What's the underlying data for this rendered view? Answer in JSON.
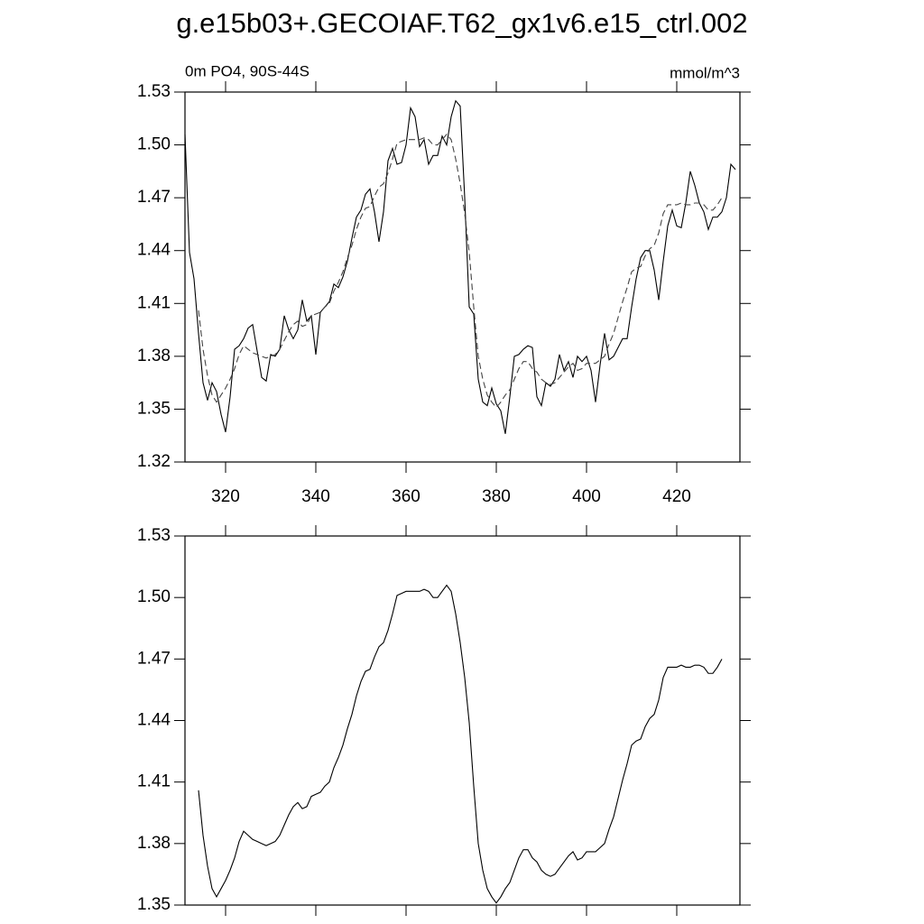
{
  "title": "g.e15b03+.GECOIAF.T62_gx1v6.e15_ctrl.002",
  "chart_data": [
    {
      "type": "line",
      "subtitle": "0m PO4, 90S-44S",
      "units": "mmol/m^3",
      "xlim": [
        311,
        434
      ],
      "xticks": [
        320,
        340,
        360,
        380,
        400,
        420
      ],
      "ylim": [
        1.32,
        1.53
      ],
      "yticks": [
        1.32,
        1.35,
        1.38,
        1.41,
        1.44,
        1.47,
        {
          "value": 1.5,
          "label": "1.50"
        },
        1.53
      ],
      "series": [
        {
          "color": "#000000",
          "dashed": false,
          "x": [
            311,
            312,
            313,
            314,
            315,
            316,
            317,
            318,
            319,
            320,
            321,
            322,
            323,
            324,
            325,
            326,
            327,
            328,
            329,
            330,
            331,
            332,
            333,
            334,
            335,
            336,
            337,
            338,
            339,
            340,
            341,
            342,
            343,
            344,
            345,
            346,
            347,
            348,
            349,
            350,
            351,
            352,
            353,
            354,
            355,
            356,
            357,
            358,
            359,
            360,
            361,
            362,
            363,
            364,
            365,
            366,
            367,
            368,
            369,
            370,
            371,
            372,
            373,
            374,
            375,
            376,
            377,
            378,
            379,
            380,
            381,
            382,
            383,
            384,
            385,
            386,
            387,
            388,
            389,
            390,
            391,
            392,
            393,
            394,
            395,
            396,
            397,
            398,
            399,
            400,
            401,
            402,
            403,
            404,
            405,
            406,
            407,
            408,
            409,
            410,
            411,
            412,
            413,
            414,
            415,
            416,
            417,
            418,
            419,
            420,
            421,
            422,
            423,
            424,
            425,
            426,
            427,
            428,
            429,
            430,
            431,
            432,
            433
          ],
          "values": [
            1.506,
            1.439,
            1.424,
            1.393,
            1.365,
            1.355,
            1.365,
            1.36,
            1.347,
            1.337,
            1.357,
            1.384,
            1.386,
            1.39,
            1.396,
            1.398,
            1.383,
            1.368,
            1.366,
            1.381,
            1.38,
            1.384,
            1.403,
            1.395,
            1.39,
            1.395,
            1.412,
            1.4,
            1.403,
            1.381,
            1.405,
            1.408,
            1.411,
            1.421,
            1.419,
            1.425,
            1.434,
            1.447,
            1.459,
            1.463,
            1.472,
            1.475,
            1.462,
            1.445,
            1.462,
            1.491,
            1.498,
            1.489,
            1.49,
            1.5,
            1.521,
            1.516,
            1.499,
            1.503,
            1.489,
            1.494,
            1.494,
            1.505,
            1.5,
            1.516,
            1.525,
            1.522,
            1.47,
            1.408,
            1.404,
            1.367,
            1.354,
            1.352,
            1.362,
            1.353,
            1.349,
            1.336,
            1.357,
            1.38,
            1.381,
            1.384,
            1.386,
            1.385,
            1.357,
            1.352,
            1.365,
            1.363,
            1.367,
            1.381,
            1.372,
            1.377,
            1.368,
            1.38,
            1.377,
            1.38,
            1.372,
            1.354,
            1.375,
            1.393,
            1.378,
            1.38,
            1.385,
            1.39,
            1.39,
            1.408,
            1.424,
            1.436,
            1.44,
            1.44,
            1.429,
            1.412,
            1.434,
            1.454,
            1.463,
            1.454,
            1.453,
            1.467,
            1.485,
            1.477,
            1.467,
            1.462,
            1.452,
            1.459,
            1.459,
            1.462,
            1.47,
            1.489,
            1.486
          ]
        },
        {
          "color": "#444444",
          "dashed": true,
          "x": [
            314,
            315,
            316,
            317,
            318,
            319,
            320,
            321,
            322,
            323,
            324,
            325,
            326,
            327,
            328,
            329,
            330,
            331,
            332,
            333,
            334,
            335,
            336,
            337,
            338,
            339,
            340,
            341,
            342,
            343,
            344,
            345,
            346,
            347,
            348,
            349,
            350,
            351,
            352,
            353,
            354,
            355,
            356,
            357,
            358,
            359,
            360,
            361,
            362,
            363,
            364,
            365,
            366,
            367,
            368,
            369,
            370,
            371,
            372,
            373,
            374,
            375,
            376,
            377,
            378,
            379,
            380,
            381,
            382,
            383,
            384,
            385,
            386,
            387,
            388,
            389,
            390,
            391,
            392,
            393,
            394,
            395,
            396,
            397,
            398,
            399,
            400,
            401,
            402,
            403,
            404,
            405,
            406,
            407,
            408,
            409,
            410,
            411,
            412,
            413,
            414,
            415,
            416,
            417,
            418,
            419,
            420,
            421,
            422,
            423,
            424,
            425,
            426,
            427,
            428,
            429,
            430
          ],
          "values": [
            1.406,
            1.384,
            1.369,
            1.358,
            1.354,
            1.358,
            1.362,
            1.367,
            1.373,
            1.381,
            1.386,
            1.384,
            1.382,
            1.381,
            1.38,
            1.379,
            1.38,
            1.381,
            1.384,
            1.389,
            1.394,
            1.398,
            1.4,
            1.397,
            1.398,
            1.403,
            1.404,
            1.405,
            1.408,
            1.41,
            1.417,
            1.422,
            1.428,
            1.436,
            1.443,
            1.452,
            1.459,
            1.464,
            1.465,
            1.471,
            1.476,
            1.478,
            1.484,
            1.492,
            1.501,
            1.502,
            1.503,
            1.503,
            1.503,
            1.503,
            1.504,
            1.503,
            1.5,
            1.5,
            1.503,
            1.506,
            1.503,
            1.492,
            1.478,
            1.461,
            1.439,
            1.408,
            1.38,
            1.367,
            1.358,
            1.354,
            1.351,
            1.354,
            1.358,
            1.361,
            1.367,
            1.373,
            1.377,
            1.377,
            1.373,
            1.371,
            1.367,
            1.365,
            1.364,
            1.365,
            1.368,
            1.371,
            1.374,
            1.376,
            1.372,
            1.373,
            1.376,
            1.376,
            1.376,
            1.378,
            1.38,
            1.387,
            1.393,
            1.402,
            1.411,
            1.419,
            1.428,
            1.43,
            1.431,
            1.437,
            1.441,
            1.443,
            1.45,
            1.461,
            1.466,
            1.466,
            1.466,
            1.467,
            1.466,
            1.466,
            1.467,
            1.467,
            1.466,
            1.463,
            1.463,
            1.466,
            1.47
          ]
        }
      ]
    },
    {
      "type": "line",
      "xlim": [
        311,
        434
      ],
      "xticks": [
        320,
        340,
        360,
        380,
        400,
        420
      ],
      "ylim": [
        1.35,
        1.53
      ],
      "yticks": [
        1.35,
        1.38,
        1.41,
        1.44,
        1.47,
        {
          "value": 1.5,
          "label": "1.50"
        },
        1.53
      ],
      "series": [
        {
          "color": "#000000",
          "dashed": false,
          "x": [
            314,
            315,
            316,
            317,
            318,
            319,
            320,
            321,
            322,
            323,
            324,
            325,
            326,
            327,
            328,
            329,
            330,
            331,
            332,
            333,
            334,
            335,
            336,
            337,
            338,
            339,
            340,
            341,
            342,
            343,
            344,
            345,
            346,
            347,
            348,
            349,
            350,
            351,
            352,
            353,
            354,
            355,
            356,
            357,
            358,
            359,
            360,
            361,
            362,
            363,
            364,
            365,
            366,
            367,
            368,
            369,
            370,
            371,
            372,
            373,
            374,
            375,
            376,
            377,
            378,
            379,
            380,
            381,
            382,
            383,
            384,
            385,
            386,
            387,
            388,
            389,
            390,
            391,
            392,
            393,
            394,
            395,
            396,
            397,
            398,
            399,
            400,
            401,
            402,
            403,
            404,
            405,
            406,
            407,
            408,
            409,
            410,
            411,
            412,
            413,
            414,
            415,
            416,
            417,
            418,
            419,
            420,
            421,
            422,
            423,
            424,
            425,
            426,
            427,
            428,
            429,
            430
          ],
          "values": [
            1.406,
            1.384,
            1.369,
            1.358,
            1.354,
            1.358,
            1.362,
            1.367,
            1.373,
            1.381,
            1.386,
            1.384,
            1.382,
            1.381,
            1.38,
            1.379,
            1.38,
            1.381,
            1.384,
            1.389,
            1.394,
            1.398,
            1.4,
            1.397,
            1.398,
            1.403,
            1.404,
            1.405,
            1.408,
            1.41,
            1.417,
            1.422,
            1.428,
            1.436,
            1.443,
            1.452,
            1.459,
            1.464,
            1.465,
            1.471,
            1.476,
            1.478,
            1.484,
            1.492,
            1.501,
            1.502,
            1.503,
            1.503,
            1.503,
            1.503,
            1.504,
            1.503,
            1.5,
            1.5,
            1.503,
            1.506,
            1.503,
            1.492,
            1.478,
            1.461,
            1.439,
            1.408,
            1.38,
            1.367,
            1.358,
            1.354,
            1.351,
            1.354,
            1.358,
            1.361,
            1.367,
            1.373,
            1.377,
            1.377,
            1.373,
            1.371,
            1.367,
            1.365,
            1.364,
            1.365,
            1.368,
            1.371,
            1.374,
            1.376,
            1.372,
            1.373,
            1.376,
            1.376,
            1.376,
            1.378,
            1.38,
            1.387,
            1.393,
            1.402,
            1.411,
            1.419,
            1.428,
            1.43,
            1.431,
            1.437,
            1.441,
            1.443,
            1.45,
            1.461,
            1.466,
            1.466,
            1.466,
            1.467,
            1.466,
            1.466,
            1.467,
            1.467,
            1.466,
            1.463,
            1.463,
            1.466,
            1.47
          ]
        }
      ]
    }
  ]
}
